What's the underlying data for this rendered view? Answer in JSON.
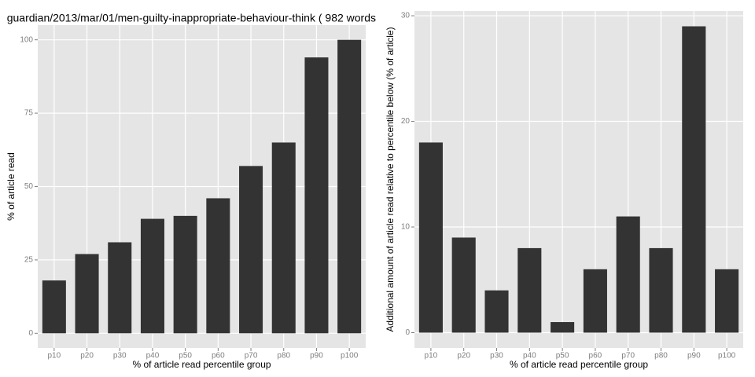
{
  "chart_data": [
    {
      "type": "bar",
      "title": "guardian/2013/mar/01/men-guilty-inappropriate-behaviour-think ( 982 words",
      "x_label": "% of article read percentile group",
      "y_label": "% of article read",
      "categories": [
        "p10",
        "p20",
        "p30",
        "p40",
        "p50",
        "p60",
        "p70",
        "p80",
        "p90",
        "p100"
      ],
      "values": [
        18,
        27,
        31,
        39,
        40,
        46,
        57,
        65,
        94,
        100
      ],
      "color": "#333333",
      "ylim": [
        -5,
        105
      ],
      "yticks": [
        0,
        25,
        50,
        75,
        100
      ],
      "grid": true
    },
    {
      "type": "bar",
      "x_label": "% of article read percentile group",
      "y_label": "Additional amount of article read relative to percentile below (% of article)",
      "categories": [
        "p10",
        "p20",
        "p30",
        "p40",
        "p50",
        "p60",
        "p70",
        "p80",
        "p90",
        "p100"
      ],
      "values": [
        18,
        9,
        4,
        8,
        1,
        6,
        11,
        8,
        29,
        6
      ],
      "color": "#333333",
      "ylim": [
        -1.45,
        30.45
      ],
      "yticks": [
        0,
        10,
        20,
        30
      ],
      "grid": true
    }
  ]
}
